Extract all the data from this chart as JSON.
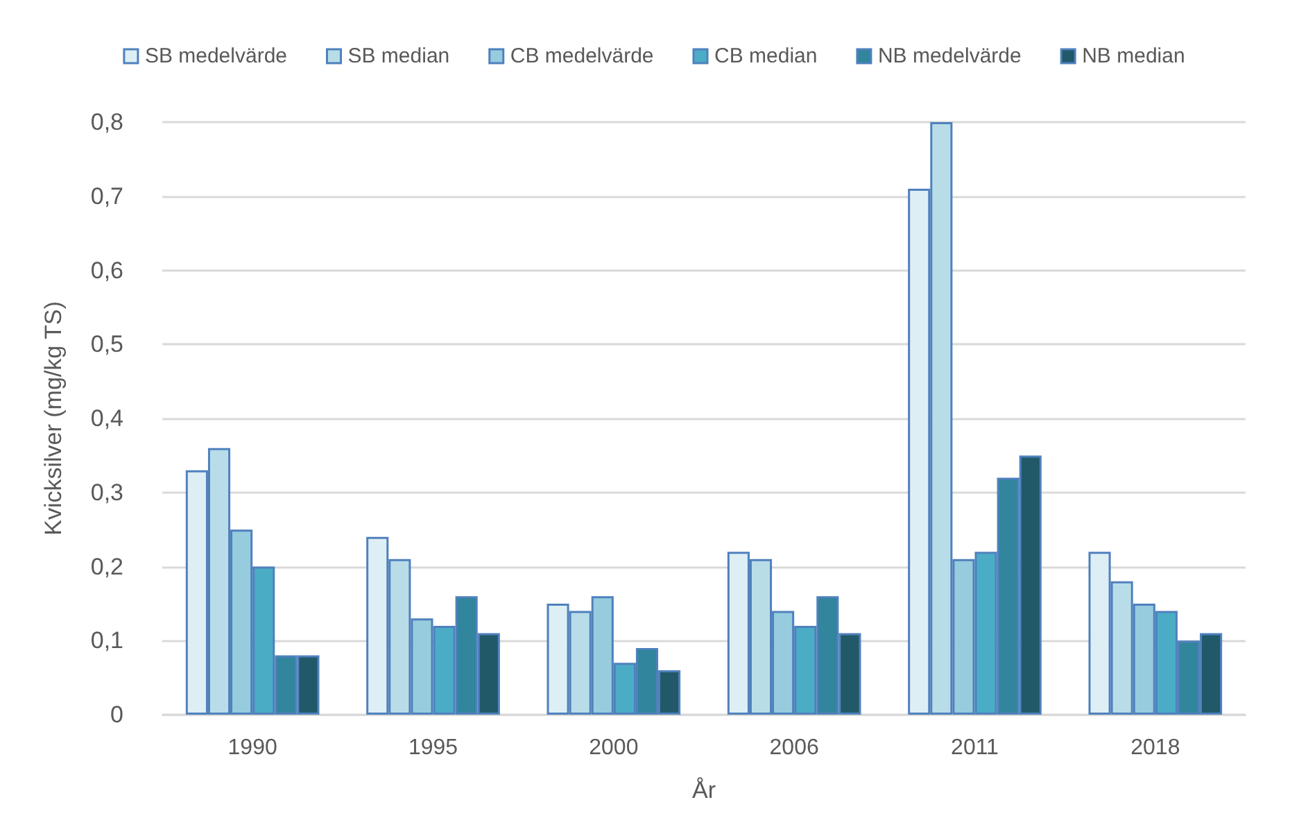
{
  "chart_data": {
    "type": "bar",
    "xlabel": "År",
    "ylabel": "Kvicksilver (mg/kg TS)",
    "categories": [
      "1990",
      "1995",
      "2000",
      "2006",
      "2011",
      "2018"
    ],
    "series": [
      {
        "name": "SB medelvärde",
        "color": "#deeef5",
        "values": [
          0.33,
          0.24,
          0.15,
          0.22,
          0.71,
          0.22
        ]
      },
      {
        "name": "SB median",
        "color": "#b9dde8",
        "values": [
          0.36,
          0.21,
          0.14,
          0.21,
          0.8,
          0.18
        ]
      },
      {
        "name": "CB medelvärde",
        "color": "#96ccdd",
        "values": [
          0.25,
          0.13,
          0.16,
          0.14,
          0.21,
          0.15
        ]
      },
      {
        "name": "CB median",
        "color": "#4bacc6",
        "values": [
          0.2,
          0.12,
          0.07,
          0.12,
          0.22,
          0.14
        ]
      },
      {
        "name": "NB medelvärde",
        "color": "#31859c",
        "values": [
          0.08,
          0.16,
          0.09,
          0.16,
          0.32,
          0.1
        ]
      },
      {
        "name": "NB median",
        "color": "#215968",
        "values": [
          0.08,
          0.11,
          0.06,
          0.11,
          0.35,
          0.11
        ]
      }
    ],
    "ylim": [
      0,
      0.8
    ],
    "yticks": [
      0,
      {
        "value": 0.1,
        "label": "0,1"
      },
      {
        "value": 0.2,
        "label": "0,2"
      },
      {
        "value": 0.3,
        "label": "0,3"
      },
      {
        "value": 0.4,
        "label": "0,4"
      },
      {
        "value": 0.5,
        "label": "0,5"
      },
      {
        "value": 0.6,
        "label": "0,6"
      },
      {
        "value": 0.7,
        "label": "0,7"
      },
      {
        "value": 0.8,
        "label": "0,8"
      }
    ],
    "grid": "y",
    "legend": "top"
  }
}
